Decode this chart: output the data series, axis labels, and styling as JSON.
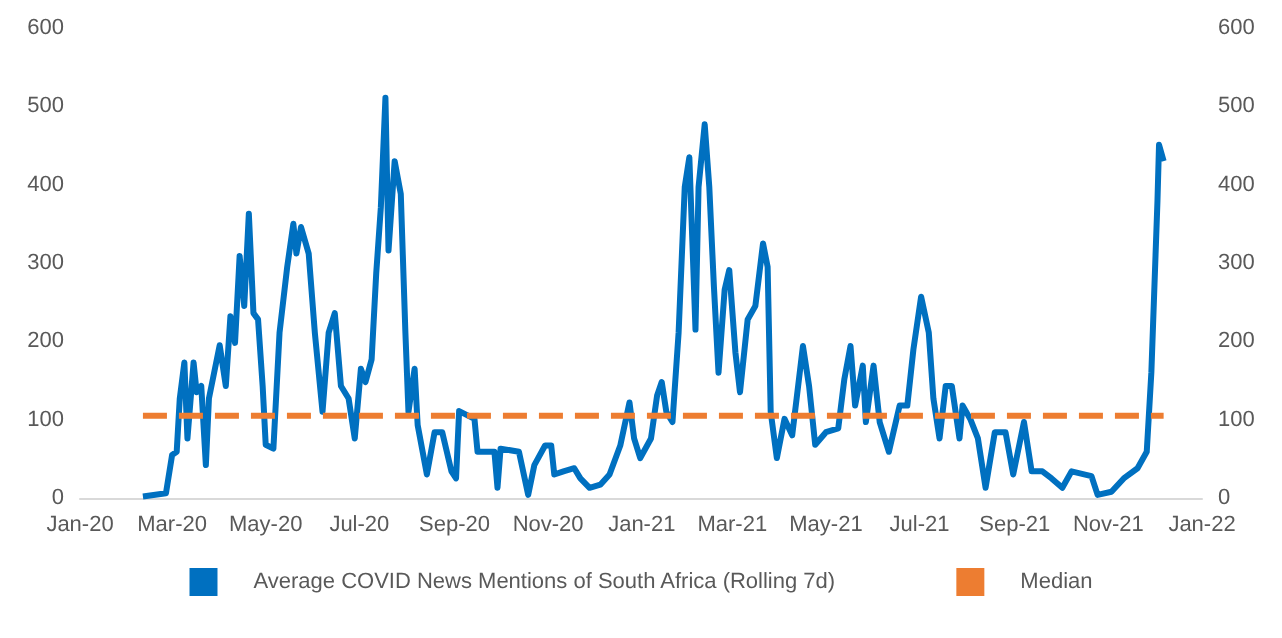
{
  "chart_data": {
    "type": "line",
    "legend": "bottom",
    "grid": false,
    "marker": "none",
    "xlim": [
      "2020-01-01",
      "2022-01-01"
    ],
    "xticks": [
      {
        "value": "2020-01-01",
        "label": "Jan-20"
      },
      {
        "value": "2020-03-01",
        "label": "Mar-20"
      },
      {
        "value": "2020-05-01",
        "label": "May-20"
      },
      {
        "value": "2020-07-01",
        "label": "Jul-20"
      },
      {
        "value": "2020-09-01",
        "label": "Sep-20"
      },
      {
        "value": "2020-11-01",
        "label": "Nov-20"
      },
      {
        "value": "2021-01-01",
        "label": "Jan-21"
      },
      {
        "value": "2021-03-01",
        "label": "Mar-21"
      },
      {
        "value": "2021-05-01",
        "label": "May-21"
      },
      {
        "value": "2021-07-01",
        "label": "Jul-21"
      },
      {
        "value": "2021-09-01",
        "label": "Sep-21"
      },
      {
        "value": "2021-11-01",
        "label": "Nov-21"
      },
      {
        "value": "2022-01-01",
        "label": "Jan-22"
      }
    ],
    "ylim": [
      0,
      600
    ],
    "yticks": [
      0,
      100,
      200,
      300,
      400,
      500,
      600
    ],
    "y2lim": [
      0,
      600
    ],
    "y2ticks": [
      0,
      100,
      200,
      300,
      400,
      500,
      600
    ],
    "series": [
      {
        "name": "Average COVID News Mentions of South Africa (Rolling 7d)",
        "color": "#0070c0",
        "line_style": "solid",
        "x": [
          "2020-02-11",
          "2020-02-26",
          "2020-03-01",
          "2020-03-04",
          "2020-03-06",
          "2020-03-09",
          "2020-03-11",
          "2020-03-15",
          "2020-03-17",
          "2020-03-20",
          "2020-03-23",
          "2020-03-25",
          "2020-04-01",
          "2020-04-05",
          "2020-04-08",
          "2020-04-11",
          "2020-04-14",
          "2020-04-17",
          "2020-04-20",
          "2020-04-23",
          "2020-04-26",
          "2020-04-29",
          "2020-05-01",
          "2020-05-06",
          "2020-05-10",
          "2020-05-15",
          "2020-05-19",
          "2020-05-21",
          "2020-05-24",
          "2020-05-29",
          "2020-06-02",
          "2020-06-07",
          "2020-06-11",
          "2020-06-15",
          "2020-06-19",
          "2020-06-24",
          "2020-06-28",
          "2020-07-02",
          "2020-07-05",
          "2020-07-09",
          "2020-07-12",
          "2020-07-15",
          "2020-07-18",
          "2020-07-20",
          "2020-07-24",
          "2020-07-28",
          "2020-07-31",
          "2020-08-02",
          "2020-08-06",
          "2020-08-08",
          "2020-08-14",
          "2020-08-19",
          "2020-08-24",
          "2020-08-30",
          "2020-09-02",
          "2020-09-04",
          "2020-09-14",
          "2020-09-16",
          "2020-09-27",
          "2020-09-29",
          "2020-10-01",
          "2020-10-13",
          "2020-10-19",
          "2020-10-23",
          "2020-10-30",
          "2020-11-03",
          "2020-11-05",
          "2020-11-11",
          "2020-11-18",
          "2020-11-22",
          "2020-11-28",
          "2020-12-05",
          "2020-12-11",
          "2020-12-18",
          "2020-12-24",
          "2020-12-27",
          "2020-12-31",
          "2021-01-07",
          "2021-01-11",
          "2021-01-14",
          "2021-01-17",
          "2021-01-21",
          "2021-01-25",
          "2021-01-29",
          "2021-02-01",
          "2021-02-05",
          "2021-02-07",
          "2021-02-11",
          "2021-02-14",
          "2021-02-17",
          "2021-02-20",
          "2021-02-24",
          "2021-02-27",
          "2021-03-03",
          "2021-03-06",
          "2021-03-11",
          "2021-03-16",
          "2021-03-21",
          "2021-03-24",
          "2021-03-26",
          "2021-03-30",
          "2021-04-04",
          "2021-04-09",
          "2021-04-16",
          "2021-04-20",
          "2021-04-24",
          "2021-05-01",
          "2021-05-09",
          "2021-05-13",
          "2021-05-17",
          "2021-05-20",
          "2021-05-25",
          "2021-05-27",
          "2021-06-01",
          "2021-06-05",
          "2021-06-11",
          "2021-06-18",
          "2021-06-23",
          "2021-06-27",
          "2021-07-02",
          "2021-07-07",
          "2021-07-10",
          "2021-07-14",
          "2021-07-18",
          "2021-07-22",
          "2021-07-27",
          "2021-07-29",
          "2021-08-03",
          "2021-08-08",
          "2021-08-13",
          "2021-08-19",
          "2021-08-26",
          "2021-08-31",
          "2021-09-07",
          "2021-09-12",
          "2021-09-19",
          "2021-09-25",
          "2021-10-02",
          "2021-10-08",
          "2021-10-21",
          "2021-10-25",
          "2021-11-03",
          "2021-11-11",
          "2021-11-20",
          "2021-11-26",
          "2021-11-29",
          "2021-12-03",
          "2021-12-04",
          "2021-12-07"
        ],
        "values": [
          2,
          6,
          55,
          59,
          127,
          173,
          76,
          173,
          135,
          143,
          42,
          127,
          195,
          143,
          232,
          198,
          309,
          245,
          363,
          236,
          228,
          143,
          68,
          63,
          211,
          295,
          350,
          312,
          346,
          312,
          211,
          110,
          211,
          236,
          143,
          127,
          76,
          165,
          148,
          177,
          287,
          371,
          511,
          316,
          430,
          388,
          211,
          110,
          165,
          93,
          30,
          84,
          84,
          34,
          25,
          111,
          101,
          59,
          59,
          13,
          63,
          59,
          4,
          42,
          67,
          67,
          30,
          34,
          38,
          25,
          13,
          17,
          30,
          67,
          122,
          76,
          51,
          76,
          131,
          148,
          110,
          97,
          211,
          397,
          435,
          215,
          397,
          477,
          397,
          270,
          160,
          266,
          291,
          186,
          135,
          228,
          245,
          325,
          295,
          110,
          51,
          101,
          80,
          194,
          143,
          68,
          84,
          89,
          152,
          194,
          118,
          169,
          97,
          169,
          97,
          59,
          118,
          118,
          190,
          257,
          211,
          127,
          76,
          143,
          143,
          76,
          118,
          101,
          76,
          13,
          84,
          84,
          30,
          97,
          34,
          34,
          25,
          13,
          34,
          28,
          4,
          8,
          25,
          38,
          59,
          160,
          380,
          451,
          430
        ]
      },
      {
        "name": "Median",
        "color": "#ed7d31",
        "line_style": "dashed",
        "x": [
          "2020-02-11",
          "2021-12-07"
        ],
        "values": [
          105,
          105
        ]
      }
    ]
  }
}
